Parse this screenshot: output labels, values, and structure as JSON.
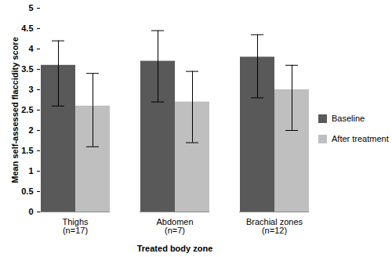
{
  "chart_data": {
    "type": "bar",
    "categories": [
      "Thighs\n(n=17)",
      "Abdomen\n(n=7)",
      "Brachial zones\n(n=12)"
    ],
    "series": [
      {
        "name": "Baseline",
        "color": "#595959",
        "values": [
          3.6,
          3.7,
          3.8
        ],
        "error_low": [
          2.6,
          2.7,
          2.8
        ],
        "error_high": [
          4.2,
          4.45,
          4.35
        ]
      },
      {
        "name": "After treatment",
        "color": "#bfbfbf",
        "values": [
          2.6,
          2.7,
          3.0
        ],
        "error_low": [
          1.6,
          1.7,
          2.0
        ],
        "error_high": [
          3.4,
          3.45,
          3.6
        ]
      }
    ],
    "x_label": "Treated body zone",
    "y_label": "Mean self-assessed flaccidity score",
    "ylim": [
      0,
      5
    ],
    "yticks": [
      0,
      0.5,
      1,
      1.5,
      2,
      2.5,
      3,
      3.5,
      4,
      4.5,
      5
    ],
    "grid": false,
    "legend": "right"
  }
}
